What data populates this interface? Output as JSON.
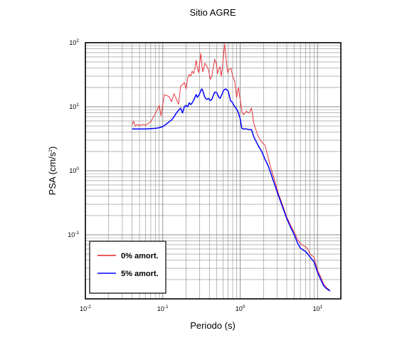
{
  "chart_data": {
    "type": "line",
    "title": "Sitio AGRE",
    "xlabel": "Periodo (s)",
    "ylabel_base": "PSA (cm/s",
    "ylabel_sup": "2",
    "ylabel_close": ")",
    "x_scale": "log",
    "y_scale": "log",
    "xlim": [
      0.01,
      20
    ],
    "ylim": [
      0.01,
      100
    ],
    "x_ticks": [
      {
        "base": "10",
        "exp": "-2",
        "value": 0.01
      },
      {
        "base": "10",
        "exp": "-1",
        "value": 0.1
      },
      {
        "base": "10",
        "exp": "0",
        "value": 1
      },
      {
        "base": "10",
        "exp": "1",
        "value": 10
      }
    ],
    "y_ticks": [
      {
        "base": "10",
        "exp": "-1",
        "value": 0.1
      },
      {
        "base": "10",
        "exp": "0",
        "value": 1
      },
      {
        "base": "10",
        "exp": "1",
        "value": 10
      },
      {
        "base": "10",
        "exp": "2",
        "value": 100
      }
    ],
    "grid": true,
    "legend_position": "bottom-left",
    "series": [
      {
        "name": "0% amort.",
        "color": "#e8232a",
        "points": [
          [
            0.04,
            5.2
          ],
          [
            0.042,
            6.0
          ],
          [
            0.044,
            5.0
          ],
          [
            0.047,
            5.3
          ],
          [
            0.05,
            5.1
          ],
          [
            0.055,
            5.3
          ],
          [
            0.06,
            5.2
          ],
          [
            0.065,
            5.5
          ],
          [
            0.07,
            5.8
          ],
          [
            0.075,
            6.8
          ],
          [
            0.08,
            7.8
          ],
          [
            0.085,
            9.0
          ],
          [
            0.09,
            10.5
          ],
          [
            0.095,
            7.2
          ],
          [
            0.1,
            10.8
          ],
          [
            0.105,
            15.5
          ],
          [
            0.11,
            15.0
          ],
          [
            0.12,
            14.5
          ],
          [
            0.13,
            12.0
          ],
          [
            0.14,
            16.0
          ],
          [
            0.15,
            13.0
          ],
          [
            0.16,
            11.0
          ],
          [
            0.17,
            21.0
          ],
          [
            0.18,
            22.0
          ],
          [
            0.19,
            24.0
          ],
          [
            0.2,
            19.0
          ],
          [
            0.21,
            28.0
          ],
          [
            0.22,
            32.0
          ],
          [
            0.23,
            30.0
          ],
          [
            0.24,
            36.0
          ],
          [
            0.25,
            33.0
          ],
          [
            0.26,
            40.0
          ],
          [
            0.27,
            53.0
          ],
          [
            0.28,
            40.0
          ],
          [
            0.29,
            34.0
          ],
          [
            0.3,
            48.0
          ],
          [
            0.31,
            68.0
          ],
          [
            0.32,
            44.0
          ],
          [
            0.33,
            35.0
          ],
          [
            0.35,
            48.0
          ],
          [
            0.37,
            43.0
          ],
          [
            0.39,
            38.0
          ],
          [
            0.41,
            27.0
          ],
          [
            0.43,
            30.0
          ],
          [
            0.45,
            42.0
          ],
          [
            0.47,
            55.0
          ],
          [
            0.49,
            48.0
          ],
          [
            0.51,
            33.0
          ],
          [
            0.53,
            40.0
          ],
          [
            0.55,
            42.0
          ],
          [
            0.57,
            30.0
          ],
          [
            0.59,
            42.0
          ],
          [
            0.61,
            65.0
          ],
          [
            0.63,
            95.0
          ],
          [
            0.66,
            55.0
          ],
          [
            0.69,
            34.0
          ],
          [
            0.72,
            38.0
          ],
          [
            0.76,
            40.0
          ],
          [
            0.8,
            30.0
          ],
          [
            0.85,
            25.0
          ],
          [
            0.9,
            14.0
          ],
          [
            0.95,
            20.0
          ],
          [
            1.0,
            13.0
          ],
          [
            1.05,
            8.5
          ],
          [
            1.1,
            7.5
          ],
          [
            1.2,
            8.5
          ],
          [
            1.3,
            8.0
          ],
          [
            1.4,
            9.5
          ],
          [
            1.5,
            5.5
          ],
          [
            1.7,
            3.5
          ],
          [
            1.9,
            2.8
          ],
          [
            2.1,
            2.5
          ],
          [
            2.3,
            1.6
          ],
          [
            2.5,
            1.1
          ],
          [
            2.8,
            0.7
          ],
          [
            3.1,
            0.45
          ],
          [
            3.5,
            0.3
          ],
          [
            4.0,
            0.19
          ],
          [
            4.5,
            0.14
          ],
          [
            5.0,
            0.11
          ],
          [
            5.5,
            0.085
          ],
          [
            6.0,
            0.073
          ],
          [
            6.5,
            0.068
          ],
          [
            7.0,
            0.065
          ],
          [
            7.5,
            0.06
          ],
          [
            8.0,
            0.05
          ],
          [
            9.0,
            0.045
          ],
          [
            10.0,
            0.028
          ],
          [
            11.0,
            0.022
          ],
          [
            12.0,
            0.017
          ],
          [
            13.0,
            0.015
          ],
          [
            14.5,
            0.0135
          ]
        ]
      },
      {
        "name": "5% amort.",
        "color": "#0000ff",
        "points": [
          [
            0.04,
            4.5
          ],
          [
            0.05,
            4.5
          ],
          [
            0.06,
            4.5
          ],
          [
            0.07,
            4.55
          ],
          [
            0.08,
            4.6
          ],
          [
            0.09,
            4.7
          ],
          [
            0.1,
            4.9
          ],
          [
            0.11,
            5.3
          ],
          [
            0.12,
            5.8
          ],
          [
            0.13,
            6.2
          ],
          [
            0.14,
            7.0
          ],
          [
            0.15,
            8.0
          ],
          [
            0.16,
            8.8
          ],
          [
            0.17,
            9.5
          ],
          [
            0.18,
            8.0
          ],
          [
            0.19,
            10.0
          ],
          [
            0.2,
            10.5
          ],
          [
            0.21,
            10.0
          ],
          [
            0.22,
            11.5
          ],
          [
            0.23,
            10.8
          ],
          [
            0.24,
            11.5
          ],
          [
            0.25,
            12.5
          ],
          [
            0.26,
            14.0
          ],
          [
            0.27,
            15.5
          ],
          [
            0.28,
            14.0
          ],
          [
            0.3,
            16.0
          ],
          [
            0.31,
            18.0
          ],
          [
            0.32,
            19.0
          ],
          [
            0.33,
            17.5
          ],
          [
            0.35,
            14.0
          ],
          [
            0.37,
            13.0
          ],
          [
            0.39,
            13.5
          ],
          [
            0.41,
            12.5
          ],
          [
            0.43,
            13.0
          ],
          [
            0.45,
            15.0
          ],
          [
            0.47,
            17.0
          ],
          [
            0.5,
            16.5
          ],
          [
            0.53,
            14.0
          ],
          [
            0.55,
            13.5
          ],
          [
            0.58,
            15.5
          ],
          [
            0.61,
            18.0
          ],
          [
            0.65,
            19.0
          ],
          [
            0.7,
            17.5
          ],
          [
            0.75,
            12.5
          ],
          [
            0.8,
            11.5
          ],
          [
            0.85,
            10.0
          ],
          [
            0.9,
            9.2
          ],
          [
            0.95,
            8.0
          ],
          [
            1.0,
            6.5
          ],
          [
            1.05,
            4.6
          ],
          [
            1.1,
            4.5
          ],
          [
            1.2,
            4.5
          ],
          [
            1.3,
            4.4
          ],
          [
            1.4,
            4.4
          ],
          [
            1.5,
            3.4
          ],
          [
            1.7,
            2.5
          ],
          [
            1.9,
            2.0
          ],
          [
            2.1,
            1.5
          ],
          [
            2.3,
            1.2
          ],
          [
            2.5,
            0.9
          ],
          [
            2.8,
            0.6
          ],
          [
            3.1,
            0.42
          ],
          [
            3.5,
            0.28
          ],
          [
            4.0,
            0.18
          ],
          [
            4.5,
            0.13
          ],
          [
            5.0,
            0.1
          ],
          [
            5.5,
            0.075
          ],
          [
            6.0,
            0.062
          ],
          [
            6.5,
            0.058
          ],
          [
            7.0,
            0.055
          ],
          [
            7.5,
            0.05
          ],
          [
            8.0,
            0.045
          ],
          [
            9.0,
            0.038
          ],
          [
            10.0,
            0.026
          ],
          [
            11.0,
            0.02
          ],
          [
            12.0,
            0.016
          ],
          [
            13.0,
            0.0145
          ],
          [
            14.5,
            0.0133
          ]
        ]
      }
    ]
  }
}
